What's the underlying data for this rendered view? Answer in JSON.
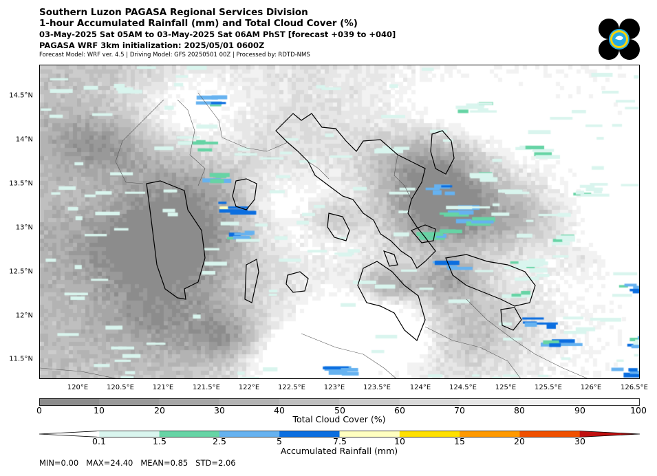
{
  "header": {
    "title_line1": "Southern Luzon PAGASA Regional Services Division",
    "title_line2": "1-hour Accumulated Rainfall (mm) and Total Cloud Cover (%)",
    "period": "03-May-2025 Sat 05AM to 03-May-2025 Sat 06AM PhST [forecast +039 to +040]",
    "initialization": "PAGASA WRF 3km initialization: 2025/05/01 0600Z",
    "model_info": "Forecast Model: WRF ver. 4.5 | Driving Model: GFS 20250501 00Z | Processed by: RDTD-NMS"
  },
  "logo": {
    "icon": "pagasa-logo-icon",
    "colors": [
      "#000000",
      "#29abe2",
      "#ffd400"
    ]
  },
  "map": {
    "lat_labels": [
      "14.5°N",
      "14°N",
      "13.5°N",
      "13°N",
      "12.5°N",
      "12°N",
      "11.5°N"
    ],
    "lon_labels": [
      "120°E",
      "120.5°E",
      "121°E",
      "121.5°E",
      "122°E",
      "122.5°E",
      "123°E",
      "123.5°E",
      "124°E",
      "124.5°E",
      "125°E",
      "125.5°E",
      "126°E",
      "126.5°E"
    ],
    "lon_range": [
      119.65,
      126.5
    ],
    "lat_range": [
      11.27,
      14.84
    ]
  },
  "cloud_colorbar": {
    "title": "Total Cloud Cover (%)",
    "ticks": [
      "0",
      "10",
      "20",
      "30",
      "40",
      "50",
      "60",
      "70",
      "80",
      "90",
      "100"
    ],
    "colors": [
      "#8c8c8c",
      "#999999",
      "#a6a6a6",
      "#b3b3b3",
      "#bfbfbf",
      "#cccccc",
      "#d9d9d9",
      "#e6e6e6",
      "#f2f2f2",
      "#ffffff"
    ]
  },
  "rain_colorbar": {
    "title": "Accumulated Rainfall (mm)",
    "ticks": [
      "0.1",
      "1.5",
      "2.5",
      "5",
      "7.5",
      "10",
      "15",
      "20",
      "30"
    ],
    "colors": [
      "#ffffff",
      "#d9f5ee",
      "#66d4a5",
      "#66b2f0",
      "#0b6ee0",
      "#ffffc0",
      "#ffe000",
      "#ff9900",
      "#f05000",
      "#c01010"
    ]
  },
  "stats": "MIN=0.00   MAX=24.40   MEAN=0.85   STD=2.06"
}
